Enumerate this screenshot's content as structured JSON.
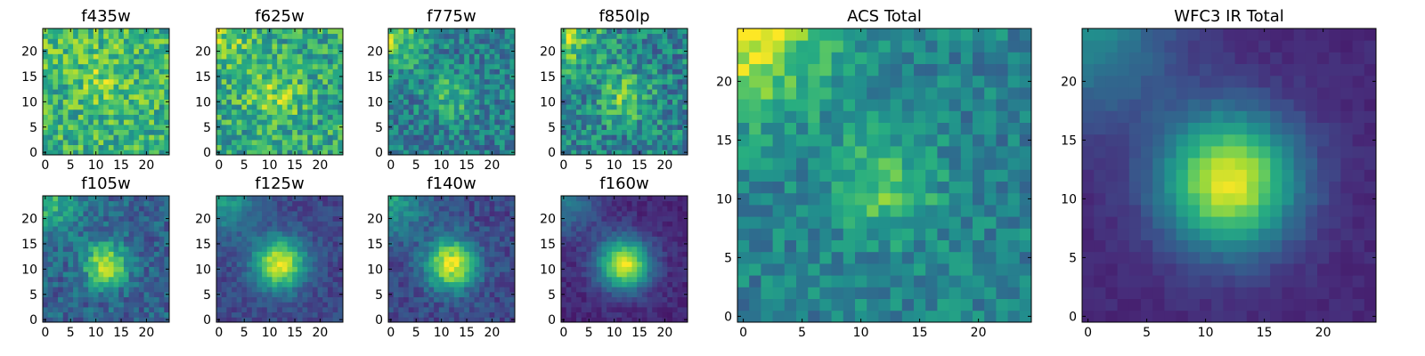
{
  "chart_data": [
    {
      "type": "heatmap",
      "title": "f435w",
      "xticks": [
        "0",
        "5",
        "10",
        "15",
        "20"
      ],
      "yticks": [
        "0",
        "5",
        "10",
        "15",
        "20"
      ],
      "xlim": [
        -0.5,
        24.5
      ],
      "ylim": [
        -0.5,
        24.5
      ],
      "grid_size": 25,
      "colormap": "viridis",
      "pattern": {
        "base": 0.65,
        "noise": 0.22,
        "blob_amp": 0.15,
        "blob_x": 12,
        "blob_y": 15,
        "blob_sigma": 4,
        "corner_amp": 0.05,
        "seed": 11
      }
    },
    {
      "type": "heatmap",
      "title": "f625w",
      "xticks": [
        "0",
        "5",
        "10",
        "15",
        "20"
      ],
      "yticks": [
        "0",
        "5",
        "10",
        "15",
        "20"
      ],
      "xlim": [
        -0.5,
        24.5
      ],
      "ylim": [
        -0.5,
        24.5
      ],
      "grid_size": 25,
      "colormap": "viridis",
      "pattern": {
        "base": 0.6,
        "noise": 0.22,
        "blob_amp": 0.2,
        "blob_x": 11,
        "blob_y": 11,
        "blob_sigma": 4,
        "corner_amp": 0.2,
        "seed": 22
      }
    },
    {
      "type": "heatmap",
      "title": "f775w",
      "xticks": [
        "0",
        "5",
        "10",
        "15",
        "20"
      ],
      "yticks": [
        "0",
        "5",
        "10",
        "15",
        "20"
      ],
      "xlim": [
        -0.5,
        24.5
      ],
      "ylim": [
        -0.5,
        24.5
      ],
      "grid_size": 25,
      "colormap": "viridis",
      "pattern": {
        "base": 0.42,
        "noise": 0.2,
        "blob_amp": 0.25,
        "blob_x": 12,
        "blob_y": 11,
        "blob_sigma": 3.5,
        "corner_amp": 0.4,
        "seed": 33
      }
    },
    {
      "type": "heatmap",
      "title": "f850lp",
      "xticks": [
        "0",
        "5",
        "10",
        "15",
        "20"
      ],
      "yticks": [
        "0",
        "5",
        "10",
        "15",
        "20"
      ],
      "xlim": [
        -0.5,
        24.5
      ],
      "ylim": [
        -0.5,
        24.5
      ],
      "grid_size": 25,
      "colormap": "viridis",
      "pattern": {
        "base": 0.45,
        "noise": 0.22,
        "blob_amp": 0.3,
        "blob_x": 12,
        "blob_y": 11,
        "blob_sigma": 3.5,
        "corner_amp": 0.4,
        "seed": 44
      }
    },
    {
      "type": "heatmap",
      "title": "f105w",
      "xticks": [
        "0",
        "5",
        "10",
        "15",
        "20"
      ],
      "yticks": [
        "0",
        "5",
        "10",
        "15",
        "20"
      ],
      "xlim": [
        -0.5,
        24.5
      ],
      "ylim": [
        -0.5,
        24.5
      ],
      "grid_size": 25,
      "colormap": "viridis",
      "pattern": {
        "base": 0.32,
        "noise": 0.14,
        "blob_amp": 0.6,
        "blob_x": 12,
        "blob_y": 11,
        "blob_sigma": 3,
        "corner_amp": 0.35,
        "seed": 55
      }
    },
    {
      "type": "heatmap",
      "title": "f125w",
      "xticks": [
        "0",
        "5",
        "10",
        "15",
        "20"
      ],
      "yticks": [
        "0",
        "5",
        "10",
        "15",
        "20"
      ],
      "xlim": [
        -0.5,
        24.5
      ],
      "ylim": [
        -0.5,
        24.5
      ],
      "grid_size": 25,
      "colormap": "viridis",
      "pattern": {
        "base": 0.22,
        "noise": 0.08,
        "blob_amp": 0.75,
        "blob_x": 12,
        "blob_y": 11,
        "blob_sigma": 3.5,
        "corner_amp": 0.35,
        "seed": 66
      }
    },
    {
      "type": "heatmap",
      "title": "f140w",
      "xticks": [
        "0",
        "5",
        "10",
        "15",
        "20"
      ],
      "yticks": [
        "0",
        "5",
        "10",
        "15",
        "20"
      ],
      "xlim": [
        -0.5,
        24.5
      ],
      "ylim": [
        -0.5,
        24.5
      ],
      "grid_size": 25,
      "colormap": "viridis",
      "pattern": {
        "base": 0.22,
        "noise": 0.1,
        "blob_amp": 0.75,
        "blob_x": 12,
        "blob_y": 11,
        "blob_sigma": 3.5,
        "corner_amp": 0.35,
        "seed": 77
      }
    },
    {
      "type": "heatmap",
      "title": "f160w",
      "xticks": [
        "0",
        "5",
        "10",
        "15",
        "20"
      ],
      "yticks": [
        "0",
        "5",
        "10",
        "15",
        "20"
      ],
      "xlim": [
        -0.5,
        24.5
      ],
      "ylim": [
        -0.5,
        24.5
      ],
      "grid_size": 25,
      "colormap": "viridis",
      "pattern": {
        "base": 0.12,
        "noise": 0.06,
        "blob_amp": 0.85,
        "blob_x": 12,
        "blob_y": 11,
        "blob_sigma": 3.5,
        "corner_amp": 0.3,
        "seed": 88
      }
    },
    {
      "type": "heatmap",
      "title": "ACS Total",
      "xticks": [
        "0",
        "5",
        "10",
        "15",
        "20"
      ],
      "yticks": [
        "0",
        "5",
        "10",
        "15",
        "20"
      ],
      "xlim": [
        -0.5,
        24.5
      ],
      "ylim": [
        -0.5,
        24.5
      ],
      "grid_size": 25,
      "colormap": "viridis",
      "pattern": {
        "base": 0.45,
        "noise": 0.14,
        "blob_amp": 0.3,
        "blob_x": 12,
        "blob_y": 11,
        "blob_sigma": 3,
        "corner_amp": 0.5,
        "seed": 99
      }
    },
    {
      "type": "heatmap",
      "title": "WFC3 IR Total",
      "xticks": [
        "0",
        "5",
        "10",
        "15",
        "20"
      ],
      "yticks": [
        "0",
        "5",
        "10",
        "15",
        "20"
      ],
      "xlim": [
        -0.5,
        24.5
      ],
      "ylim": [
        -0.5,
        24.5
      ],
      "grid_size": 25,
      "colormap": "viridis",
      "pattern": {
        "base": 0.12,
        "noise": 0.03,
        "blob_amp": 0.85,
        "blob_x": 12,
        "blob_y": 11.5,
        "blob_sigma": 4,
        "corner_amp": 0.35,
        "seed": 123
      }
    }
  ]
}
